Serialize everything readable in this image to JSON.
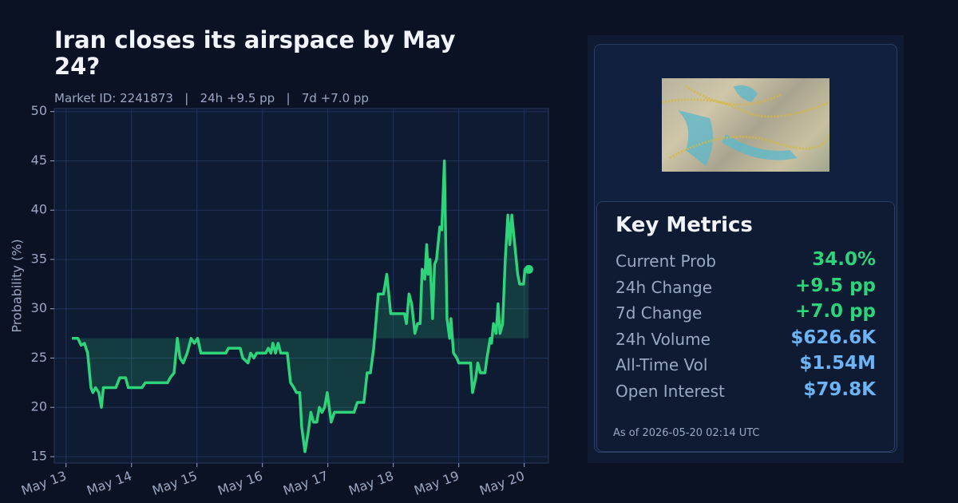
{
  "chart_data": {
    "type": "line",
    "title": "Iran closes its airspace by May 24?",
    "subtitle": "Market ID: 2241873   |   24h +9.5 pp   |   7d +7.0 pp",
    "y_label": "Probability (%)",
    "xlim": [
      -0.18,
      7.37
    ],
    "xticks": [
      {
        "value": 0,
        "label": "May 13"
      },
      {
        "value": 1,
        "label": "May 14"
      },
      {
        "value": 2,
        "label": "May 15"
      },
      {
        "value": 3,
        "label": "May 16"
      },
      {
        "value": 4,
        "label": "May 17"
      },
      {
        "value": 5,
        "label": "May 18"
      },
      {
        "value": 6,
        "label": "May 19"
      },
      {
        "value": 7,
        "label": "May 20"
      }
    ],
    "ylim": [
      14.35,
      50.3
    ],
    "yticks": [
      15,
      20,
      25,
      30,
      35,
      40,
      45,
      50
    ],
    "grid": true,
    "series": [
      {
        "name": "Probability",
        "color": "#2ed47a",
        "x": [
          0.09,
          0.18,
          0.23,
          0.28,
          0.33,
          0.38,
          0.41,
          0.45,
          0.5,
          0.54,
          0.57,
          0.76,
          0.82,
          0.91,
          0.95,
          1.16,
          1.21,
          1.55,
          1.59,
          1.65,
          1.7,
          1.74,
          1.79,
          1.85,
          1.91,
          1.96,
          2.01,
          2.06,
          2.44,
          2.48,
          2.66,
          2.7,
          2.78,
          2.82,
          2.87,
          2.91,
          3.05,
          3.09,
          3.13,
          3.16,
          3.2,
          3.24,
          3.28,
          3.38,
          3.43,
          3.48,
          3.52,
          3.57,
          3.6,
          3.65,
          3.7,
          3.74,
          3.78,
          3.83,
          3.87,
          3.91,
          3.95,
          3.99,
          4.05,
          4.1,
          4.4,
          4.45,
          4.55,
          4.6,
          4.65,
          4.7,
          4.77,
          4.85,
          4.9,
          4.96,
          5.17,
          5.2,
          5.24,
          5.28,
          5.33,
          5.37,
          5.41,
          5.44,
          5.48,
          5.51,
          5.53,
          5.56,
          5.6,
          5.63,
          5.66,
          5.71,
          5.74,
          5.78,
          5.82,
          5.86,
          5.88,
          5.92,
          5.97,
          6.0,
          6.18,
          6.21,
          6.26,
          6.29,
          6.33,
          6.4,
          6.43,
          6.48,
          6.5,
          6.53,
          6.57,
          6.6,
          6.63,
          6.67,
          6.71,
          6.75,
          6.78,
          6.81,
          6.84,
          6.87,
          6.9,
          6.93,
          6.99,
          7.01,
          7.07
        ],
        "values": [
          27,
          27,
          26.3,
          26.5,
          25.5,
          22,
          21.5,
          22,
          21.5,
          20,
          22,
          22,
          23,
          23,
          22,
          22,
          22.5,
          22.5,
          23,
          23.5,
          27,
          25,
          24.5,
          25.5,
          27,
          26.5,
          27,
          25.5,
          25.5,
          26,
          26,
          25,
          24.5,
          25.5,
          25,
          25.5,
          25.5,
          26,
          25.5,
          26.5,
          25.5,
          26.5,
          25.5,
          25.5,
          22.5,
          22,
          21.5,
          21.5,
          18,
          15.5,
          17.5,
          19.5,
          18.5,
          18.5,
          20,
          19.5,
          20,
          21.5,
          18.5,
          19.5,
          19.5,
          20.5,
          20.5,
          23.5,
          23.5,
          26,
          31.5,
          31.5,
          33.5,
          29.5,
          29.5,
          28.5,
          31.5,
          30.5,
          27.5,
          28.5,
          28.5,
          34,
          33,
          36.5,
          33.5,
          35,
          29,
          34.5,
          35,
          38.3,
          38,
          45,
          29,
          27,
          29,
          25.5,
          25,
          24.5,
          24.5,
          21.5,
          23,
          24.5,
          23.5,
          23.5,
          25,
          27,
          26.5,
          28.5,
          27.5,
          30.5,
          27.5,
          28.5,
          35,
          39.5,
          36.5,
          39.5,
          37.5,
          35.5,
          33.5,
          32.5,
          32.5,
          34,
          34
        ]
      }
    ]
  },
  "panel": {
    "title": "Key Metrics",
    "metrics": [
      {
        "label": "Current Prob",
        "value": "34.0%",
        "color": "#2ed47a"
      },
      {
        "label": "24h Change",
        "value": "+9.5 pp",
        "color": "#2ed47a"
      },
      {
        "label": "7d Change",
        "value": "+7.0 pp",
        "color": "#2ed47a"
      },
      {
        "label": "24h Volume",
        "value": "$626.6K",
        "color": "#6cb4f5"
      },
      {
        "label": "All-Time Vol",
        "value": "$1.54M",
        "color": "#6cb4f5"
      },
      {
        "label": "Open Interest",
        "value": "$79.8K",
        "color": "#6cb4f5"
      }
    ],
    "footnote": "As of 2026-05-20 02:14 UTC"
  }
}
